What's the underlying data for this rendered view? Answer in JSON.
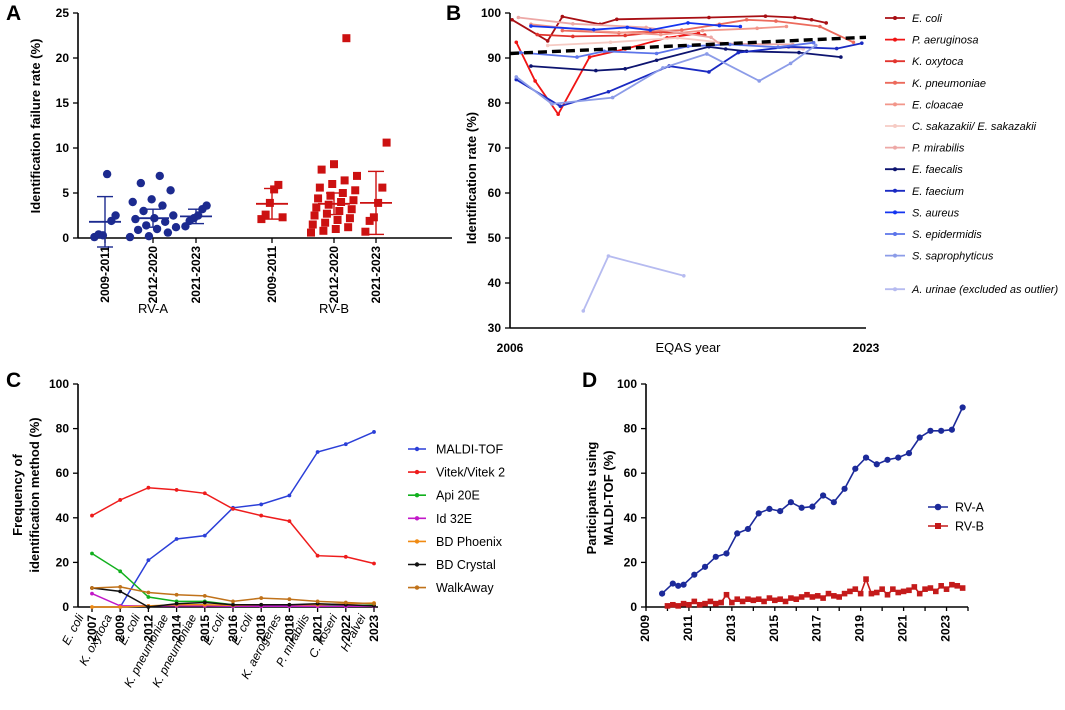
{
  "panels": {
    "a": "A",
    "b": "B",
    "c": "C",
    "d": "D"
  },
  "chart_data": [
    {
      "type": "scatter",
      "panel": "A",
      "ylabel": "Identification failure rate (%)",
      "ylim": [
        0,
        25
      ],
      "yticks": [
        "0",
        "5",
        "10",
        "15",
        "20",
        "25"
      ],
      "groups": [
        {
          "name": "RV-A",
          "color": "#1c2a8f",
          "marker": "circle",
          "categories": [
            "2009-2011",
            "2012-2020",
            "2021-2023"
          ],
          "points": [
            [
              0.1,
              0.4,
              0.3,
              7.1,
              1.9,
              2.5
            ],
            [
              0.1,
              0.2,
              0.6,
              0.9,
              1.0,
              1.2,
              1.4,
              1.8,
              2.1,
              2.2,
              2.5,
              3.0,
              3.6,
              4.0,
              4.3,
              5.3,
              6.1,
              6.9
            ],
            [
              1.3,
              1.9,
              2.2,
              2.5,
              3.2,
              3.6
            ]
          ],
          "mean": [
            1.8,
            2.2,
            2.4
          ],
          "err": [
            2.8,
            1.0,
            0.8
          ]
        },
        {
          "name": "RV-B",
          "color": "#cc1111",
          "marker": "square",
          "categories": [
            "2009-2011",
            "2012-2020",
            "2021-2023"
          ],
          "points": [
            [
              2.1,
              2.6,
              3.9,
              5.4,
              5.9,
              2.3
            ],
            [
              0.6,
              0.8,
              1.0,
              1.2,
              1.5,
              1.7,
              2.0,
              2.2,
              2.5,
              2.7,
              3.0,
              3.2,
              3.4,
              3.7,
              4.0,
              4.2,
              4.4,
              4.7,
              5.0,
              5.3,
              5.6,
              6.0,
              6.4,
              6.9,
              7.6,
              8.2,
              22.2
            ],
            [
              0.7,
              1.9,
              2.3,
              3.9,
              5.6,
              10.6
            ]
          ],
          "mean": [
            3.8,
            3.8,
            3.9
          ],
          "err": [
            1.7,
            1.2,
            3.5
          ]
        }
      ]
    },
    {
      "type": "line",
      "panel": "B",
      "xlabel": "EQAS year",
      "ylabel": "Identification rate (%)",
      "xlim": [
        2006,
        2023
      ],
      "ylim": [
        30,
        100
      ],
      "xticks": [
        "2006",
        "2023"
      ],
      "yticks": [
        "30",
        "40",
        "50",
        "60",
        "70",
        "80",
        "90",
        "100"
      ],
      "trend": {
        "x": [
          2006,
          2023
        ],
        "y": [
          91.0,
          94.6
        ]
      },
      "series": [
        {
          "name": "E. coli",
          "color": "#a80f14",
          "x": [
            2006.1,
            2007.8,
            2008.5,
            2010.3,
            2011.1,
            2015.5,
            2018.2,
            2019.6,
            2020.4,
            2021.1
          ],
          "y": [
            98.5,
            93.8,
            99.2,
            97.5,
            98.6,
            99.0,
            99.3,
            99.0,
            98.5,
            97.8
          ]
        },
        {
          "name": "P. aeruginosa",
          "color": "#f01414",
          "x": [
            2006.3,
            2007.2,
            2008.3,
            2009.8,
            2011.5,
            2013.5,
            2015.0
          ],
          "y": [
            93.5,
            84.9,
            77.5,
            90.2,
            92.0,
            94.5,
            95.5
          ]
        },
        {
          "name": "K. oxytoca",
          "color": "#e2342e",
          "x": [
            2007.3,
            2009.0,
            2011.5,
            2013.2,
            2015.3
          ],
          "y": [
            95.2,
            94.8,
            95.0,
            95.8,
            95.1
          ]
        },
        {
          "name": "K. pneumoniae",
          "color": "#ec6a5c",
          "x": [
            2008.5,
            2011.2,
            2014.2,
            2016.0,
            2017.3,
            2018.7,
            2020.8,
            2022.4
          ],
          "y": [
            96.1,
            95.6,
            96.2,
            97.5,
            98.5,
            98.2,
            97.0,
            93.5
          ]
        },
        {
          "name": "E. cloacae",
          "color": "#f2968a",
          "x": [
            2007.0,
            2010.0,
            2013.2,
            2015.2,
            2017.8,
            2019.2
          ],
          "y": [
            97.5,
            96.0,
            95.2,
            96.1,
            96.6,
            97.0
          ]
        },
        {
          "name": "C. sakazakii/ E. sakazakii",
          "color": "#f6cbc4",
          "x": [
            2007.8,
            2010.8,
            2014.0,
            2017.0,
            2020.0
          ],
          "y": [
            92.8,
            93.5,
            94.5,
            93.0,
            92.0
          ]
        },
        {
          "name": "P. mirabilis",
          "color": "#eda8a6",
          "x": [
            2006.4,
            2009.0,
            2012.5,
            2015.6,
            2016.0,
            2019.5
          ],
          "y": [
            99.0,
            97.6,
            96.8,
            94.6,
            93.2,
            93.0
          ]
        },
        {
          "name": "E. faecalis",
          "color": "#0d1470",
          "x": [
            2007.0,
            2010.1,
            2011.5,
            2013.0,
            2015.5,
            2016.3,
            2017.3,
            2019.8,
            2021.8
          ],
          "y": [
            88.2,
            87.2,
            87.6,
            89.5,
            92.5,
            92.0,
            91.5,
            91.2,
            90.2
          ]
        },
        {
          "name": "E. faecium",
          "color": "#1a2ac2",
          "x": [
            2006.3,
            2008.4,
            2010.7,
            2013.6,
            2015.5,
            2016.9,
            2019.3,
            2021.6,
            2022.8
          ],
          "y": [
            85.2,
            79.3,
            82.5,
            88.2,
            86.9,
            91.2,
            92.5,
            92.1,
            93.3
          ]
        },
        {
          "name": "S. aureus",
          "color": "#1435f0",
          "x": [
            2007.0,
            2010.0,
            2011.6,
            2012.7,
            2014.5,
            2016.0,
            2017.0
          ],
          "y": [
            97.1,
            96.3,
            96.8,
            96.2,
            97.8,
            97.2,
            97.0
          ]
        },
        {
          "name": "S. epidermidis",
          "color": "#5c74ea",
          "x": [
            2006.5,
            2009.2,
            2010.5,
            2013.0,
            2014.5,
            2016.5,
            2018.8,
            2020.5
          ],
          "y": [
            91.2,
            90.2,
            91.5,
            91.0,
            92.6,
            93.0,
            92.4,
            93.4
          ]
        },
        {
          "name": "S. saprophyticus",
          "color": "#8c9ce8",
          "x": [
            2006.3,
            2008.0,
            2010.9,
            2013.3,
            2015.4,
            2017.9,
            2019.4,
            2020.6
          ],
          "y": [
            85.8,
            79.8,
            81.2,
            87.8,
            90.9,
            84.9,
            88.8,
            92.8
          ]
        },
        {
          "name": "A. urinae (excluded as outlier)",
          "color": "#b6bbf0",
          "x": [
            2009.5,
            2010.7,
            2014.3
          ],
          "y": [
            33.8,
            46.0,
            41.6
          ]
        }
      ]
    },
    {
      "type": "line",
      "panel": "C",
      "ylabel": "Frequency of identification method (%)",
      "ylim": [
        0,
        100
      ],
      "yticks": [
        "0",
        "20",
        "40",
        "60",
        "80",
        "100"
      ],
      "categories": [
        "2007",
        "2009",
        "2012",
        "2014",
        "2015",
        "2016",
        "2018",
        "2018",
        "2021",
        "2022",
        "2023"
      ],
      "organisms": [
        "E. coli",
        "K. oxytoca",
        "E. coli",
        "K. pneumoniae",
        "K. pneumoniae",
        "E. coli",
        "E. coli",
        "K. aerogenes",
        "P. mirabilis",
        "C. koseri",
        "H. alvei"
      ],
      "series": [
        {
          "name": "MALDI-TOF",
          "color": "#2b3fd8",
          "values": [
            null,
            0,
            21,
            30.5,
            32,
            44.5,
            46,
            50,
            69.5,
            73,
            78.5
          ]
        },
        {
          "name": "Vitek/Vitek 2",
          "color": "#ee1c1c",
          "values": [
            41,
            48,
            53.5,
            52.5,
            51,
            44,
            41,
            38.5,
            23,
            22.5,
            19.5
          ]
        },
        {
          "name": "Api 20E",
          "color": "#12b01e",
          "values": [
            24,
            16,
            4.5,
            2.5,
            2.5,
            1,
            0.8,
            0.8,
            0.5,
            0.8,
            0.8
          ]
        },
        {
          "name": "Id 32E",
          "color": "#c218c8",
          "values": [
            6,
            0.5,
            0.5,
            0.5,
            0.5,
            0.3,
            0.3,
            0.3,
            0.3,
            0.3,
            0.3
          ]
        },
        {
          "name": "BD Phoenix",
          "color": "#f08a12",
          "values": [
            0,
            0,
            0.5,
            1,
            1,
            0.8,
            1,
            1,
            1,
            1.5,
            1.8
          ]
        },
        {
          "name": "BD Crystal",
          "color": "#111111",
          "values": [
            8.5,
            7,
            0,
            1.5,
            2,
            1,
            1,
            1,
            1.5,
            1,
            0.5
          ]
        },
        {
          "name": "WalkAway",
          "color": "#c0721a",
          "values": [
            8.5,
            9,
            6.5,
            5.5,
            5,
            2.5,
            4,
            3.5,
            2.5,
            2,
            1.5
          ]
        }
      ]
    },
    {
      "type": "line",
      "panel": "D",
      "ylabel": "Participants using MALDI-TOF (%)",
      "xlim": [
        2009,
        2024
      ],
      "ylim": [
        0,
        100
      ],
      "xticks": [
        "2009",
        "2011",
        "2013",
        "2015",
        "2017",
        "2019",
        "2021",
        "2023"
      ],
      "yticks": [
        "0",
        "20",
        "40",
        "60",
        "80",
        "100"
      ],
      "series": [
        {
          "name": "RV-A",
          "color": "#1c2a9a",
          "marker": "circle",
          "x": [
            2009.75,
            2010.25,
            2010.5,
            2010.75,
            2011.25,
            2011.75,
            2012.25,
            2012.75,
            2013.25,
            2013.75,
            2014.25,
            2014.75,
            2015.25,
            2015.75,
            2016.25,
            2016.75,
            2017.25,
            2017.75,
            2018.25,
            2018.75,
            2019.25,
            2019.75,
            2020.25,
            2020.75,
            2021.25,
            2021.75,
            2022.25,
            2022.75,
            2023.25,
            2023.75
          ],
          "y": [
            6,
            10.5,
            9.5,
            10,
            14.5,
            18,
            22.5,
            24,
            33,
            35,
            42,
            44,
            43,
            47,
            44.5,
            45,
            50,
            47,
            53,
            62,
            67,
            64,
            66,
            67,
            69,
            76,
            79,
            79,
            79.5,
            89.5
          ]
        },
        {
          "name": "RV-B",
          "color": "#c41a1a",
          "marker": "square",
          "x": [
            2010.0,
            2010.25,
            2010.5,
            2010.75,
            2011.0,
            2011.25,
            2011.5,
            2011.75,
            2012.0,
            2012.25,
            2012.5,
            2012.75,
            2013.0,
            2013.25,
            2013.5,
            2013.75,
            2014.0,
            2014.25,
            2014.5,
            2014.75,
            2015.0,
            2015.25,
            2015.5,
            2015.75,
            2016.0,
            2016.25,
            2016.5,
            2016.75,
            2017.0,
            2017.25,
            2017.5,
            2017.75,
            2018.0,
            2018.25,
            2018.5,
            2018.75,
            2019.0,
            2019.25,
            2019.5,
            2019.75,
            2020.0,
            2020.25,
            2020.5,
            2020.75,
            2021.0,
            2021.25,
            2021.5,
            2021.75,
            2022.0,
            2022.25,
            2022.5,
            2022.75,
            2023.0,
            2023.25,
            2023.5,
            2023.75
          ],
          "y": [
            0.5,
            1,
            0.5,
            1.5,
            1,
            2.5,
            1,
            1.5,
            2.5,
            1.5,
            2,
            5.5,
            2,
            3.5,
            2.5,
            3.5,
            3,
            3.5,
            2.5,
            4,
            3,
            3.5,
            2.5,
            4,
            3.5,
            4.5,
            5.5,
            4.5,
            5,
            4,
            6,
            5,
            4.5,
            6,
            7,
            8,
            6,
            12.5,
            6,
            6.5,
            8,
            5.5,
            8,
            6.5,
            7,
            7.5,
            9,
            6,
            8,
            8.5,
            7,
            9.5,
            8,
            10,
            9.5,
            8.5
          ]
        }
      ]
    }
  ]
}
